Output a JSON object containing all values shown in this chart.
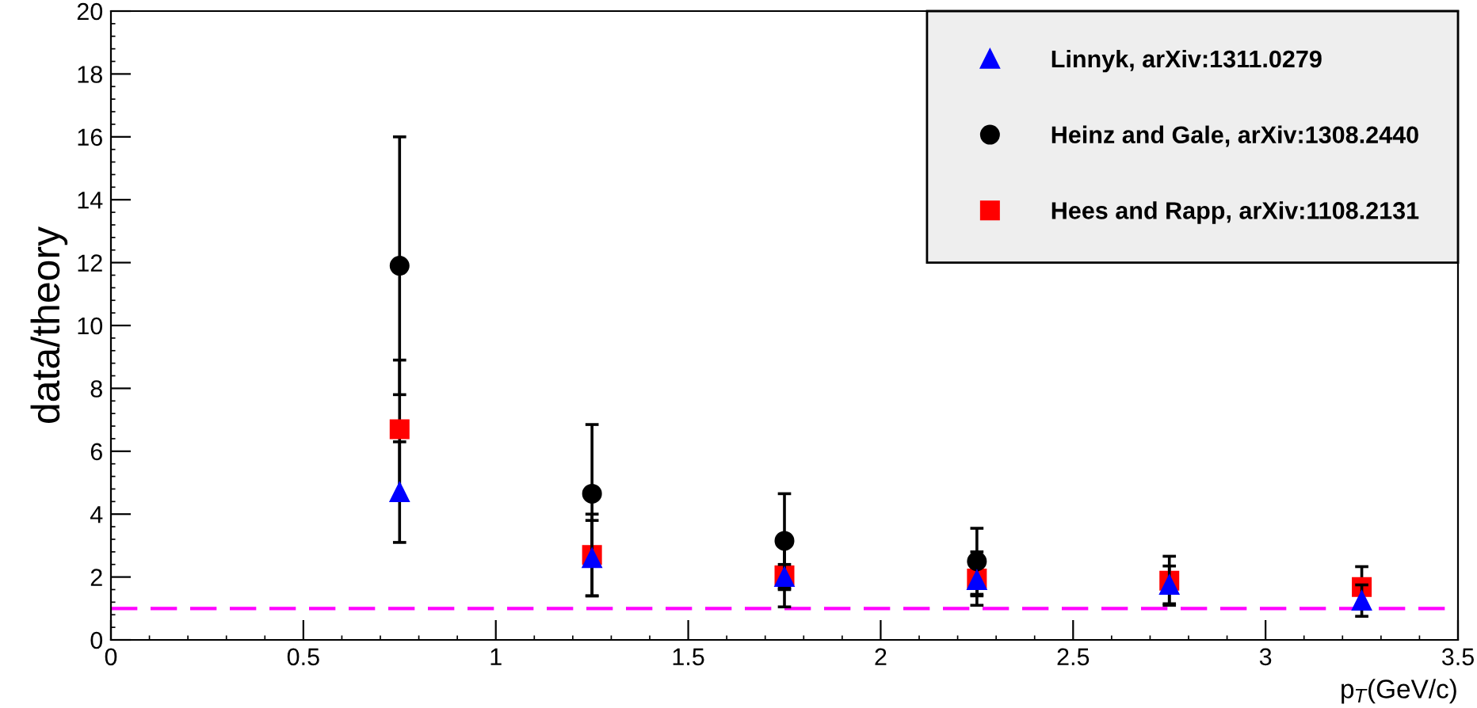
{
  "chart_data": {
    "type": "scatter",
    "xlabel": "p$_{T}$(GeV/c)",
    "ylabel": "data/theory",
    "x": [
      0.75,
      1.25,
      1.75,
      2.25,
      2.75,
      3.25
    ],
    "series": [
      {
        "name": "Linnyk, arXiv:1311.0279",
        "color": "#0000ff",
        "marker": "triangle",
        "values": [
          4.7,
          2.6,
          2.0,
          1.9,
          1.75,
          1.25
        ],
        "errors": [
          1.6,
          1.2,
          0.4,
          0.5,
          0.6,
          0.5
        ]
      },
      {
        "name": "Heinz and Gale, arXiv:1308.2440",
        "color": "#000000",
        "marker": "circle",
        "values": [
          11.9,
          4.65,
          3.15,
          2.5,
          null,
          null
        ],
        "errors": [
          4.1,
          2.2,
          1.5,
          1.05,
          null,
          null
        ]
      },
      {
        "name": "Hees and Rapp, arXiv:1108.2131",
        "color": "#ff0000",
        "marker": "square",
        "values": [
          6.7,
          2.7,
          2.05,
          1.95,
          1.88,
          1.68
        ],
        "errors": [
          2.2,
          1.3,
          1.0,
          0.85,
          0.78,
          0.65
        ]
      }
    ],
    "xlim": [
      0,
      3.5
    ],
    "xticks": [
      0,
      0.5,
      1,
      1.5,
      2,
      2.5,
      3,
      3.5
    ],
    "ylim": [
      0,
      20
    ],
    "yticks": [
      0,
      2,
      4,
      6,
      8,
      10,
      12,
      14,
      16,
      18,
      20
    ],
    "ref_lines": [
      {
        "axis": "y",
        "value": 1,
        "color": "#ff00ff",
        "line_style": "dashed"
      }
    ],
    "legend": "top right",
    "grid": false
  }
}
